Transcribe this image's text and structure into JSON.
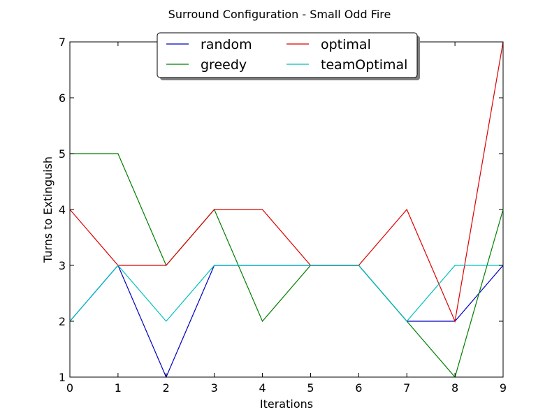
{
  "chart_data": {
    "type": "line",
    "title": "Surround Configuration - Small Odd Fire",
    "xlabel": "Iterations",
    "ylabel": "Turns to Extinguish",
    "x": [
      0,
      1,
      2,
      3,
      4,
      5,
      6,
      7,
      8,
      9
    ],
    "xlim": [
      0,
      9
    ],
    "ylim": [
      1,
      7
    ],
    "xticks": [
      "0",
      "1",
      "2",
      "3",
      "4",
      "5",
      "6",
      "7",
      "8",
      "9"
    ],
    "yticks": [
      "1",
      "2",
      "3",
      "4",
      "5",
      "6",
      "7"
    ],
    "grid": false,
    "legend_position": "top-center",
    "series": [
      {
        "name": "random",
        "color": "#0000bf",
        "values": [
          2,
          3,
          1,
          3,
          3,
          3,
          3,
          2,
          2,
          3
        ]
      },
      {
        "name": "greedy",
        "color": "#007f00",
        "values": [
          5,
          5,
          3,
          4,
          2,
          3,
          3,
          2,
          1,
          4
        ]
      },
      {
        "name": "optimal",
        "color": "#dd0000",
        "values": [
          4,
          3,
          3,
          4,
          4,
          3,
          3,
          4,
          2,
          7
        ]
      },
      {
        "name": "teamOptimal",
        "color": "#00bfbf",
        "values": [
          2,
          3,
          2,
          3,
          3,
          3,
          3,
          2,
          3,
          3
        ]
      }
    ]
  }
}
